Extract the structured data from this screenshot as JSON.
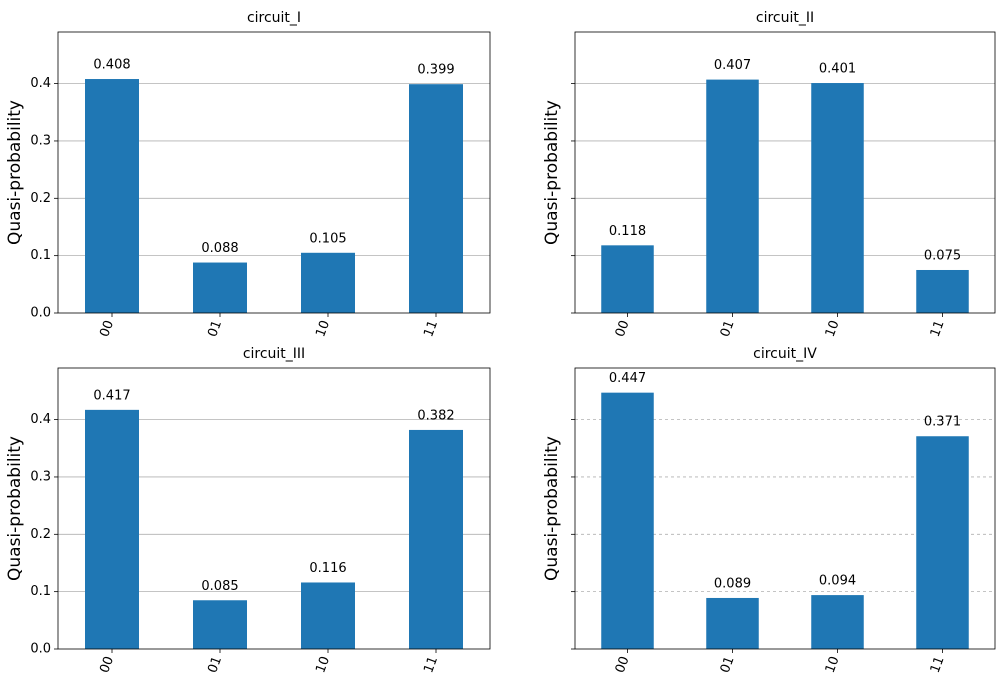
{
  "chart_data": [
    {
      "type": "bar",
      "title": "circuit_I",
      "ylabel": "Quasi-probability",
      "xlabel": "",
      "categories": [
        "00",
        "01",
        "10",
        "11"
      ],
      "values": [
        0.408,
        0.088,
        0.105,
        0.399
      ],
      "value_labels": [
        "0.408",
        "0.088",
        "0.105",
        "0.399"
      ],
      "ylim": [
        0,
        0.49
      ],
      "yticks": [
        0.0,
        0.1,
        0.2,
        0.3,
        0.4
      ],
      "ytick_labels": [
        "0.0",
        "0.1",
        "0.2",
        "0.3",
        "0.4"
      ],
      "show_ytick_labels": true,
      "grid": "solid",
      "bar_color": "#1f77b4"
    },
    {
      "type": "bar",
      "title": "circuit_II",
      "ylabel": "Quasi-probability",
      "xlabel": "",
      "categories": [
        "00",
        "01",
        "10",
        "11"
      ],
      "values": [
        0.118,
        0.407,
        0.401,
        0.075
      ],
      "value_labels": [
        "0.118",
        "0.407",
        "0.401",
        "0.075"
      ],
      "ylim": [
        0,
        0.49
      ],
      "yticks": [
        0.0,
        0.1,
        0.2,
        0.3,
        0.4
      ],
      "ytick_labels": [
        "",
        "",
        "",
        "",
        ""
      ],
      "show_ytick_labels": false,
      "grid": "solid",
      "bar_color": "#1f77b4"
    },
    {
      "type": "bar",
      "title": "circuit_III",
      "ylabel": "Quasi-probability",
      "xlabel": "",
      "categories": [
        "00",
        "01",
        "10",
        "11"
      ],
      "values": [
        0.417,
        0.085,
        0.116,
        0.382
      ],
      "value_labels": [
        "0.417",
        "0.085",
        "0.116",
        "0.382"
      ],
      "ylim": [
        0,
        0.49
      ],
      "yticks": [
        0.0,
        0.1,
        0.2,
        0.3,
        0.4
      ],
      "ytick_labels": [
        "0.0",
        "0.1",
        "0.2",
        "0.3",
        "0.4"
      ],
      "show_ytick_labels": true,
      "grid": "solid",
      "bar_color": "#1f77b4"
    },
    {
      "type": "bar",
      "title": "circuit_IV",
      "ylabel": "Quasi-probability",
      "xlabel": "",
      "categories": [
        "00",
        "01",
        "10",
        "11"
      ],
      "values": [
        0.447,
        0.089,
        0.094,
        0.371
      ],
      "value_labels": [
        "0.447",
        "0.089",
        "0.094",
        "0.371"
      ],
      "ylim": [
        0,
        0.49
      ],
      "yticks": [
        0.0,
        0.1,
        0.2,
        0.3,
        0.4
      ],
      "ytick_labels": [
        "",
        "",
        "",
        "",
        ""
      ],
      "show_ytick_labels": false,
      "grid": "dashed",
      "bar_color": "#1f77b4"
    }
  ]
}
